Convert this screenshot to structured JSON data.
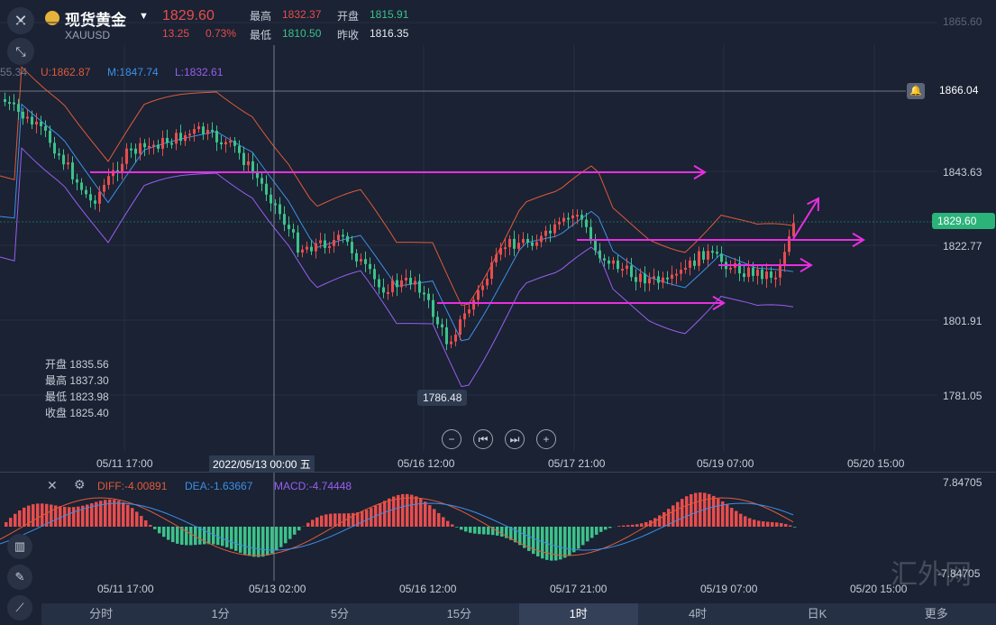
{
  "header": {
    "name": "现货黄金",
    "symbol": "XAUUSD",
    "price": "1829.60",
    "change": "13.25",
    "change_pct": "0.73%",
    "high_label": "最高",
    "high": "1832.37",
    "open_label": "开盘",
    "open": "1815.91",
    "low_label": "最低",
    "low": "1810.50",
    "prev_label": "昨收",
    "prev": "1816.35"
  },
  "boll": {
    "left_value": "55.34",
    "u": "U:1862.87",
    "m": "M:1847.74",
    "l": "L:1832.61"
  },
  "price_axis": [
    "1865.60",
    "1843.63",
    "1822.77",
    "1801.91",
    "1781.05"
  ],
  "alert_price": "1866.04",
  "current_price_tag": "1829.60",
  "low_marker": "1786.48",
  "ohlc_box": {
    "open": "开盘 1835.56",
    "high": "最高 1837.30",
    "low": "最低 1823.98",
    "close": "收盘 1825.40"
  },
  "time_axis": [
    "05/11 17:00",
    "05/16 12:00",
    "05/17 21:00",
    "05/19 07:00",
    "05/20 15:00"
  ],
  "crosshair_time": "2022/05/13 00:00 五",
  "macd": {
    "diff": "DIFF:-4.00891",
    "dea": "DEA:-1.63667",
    "macd": "MACD:-4.74448",
    "top": "7.84705",
    "bottom": "-7.84705"
  },
  "macd_time_axis": [
    "05/11 17:00",
    "05/13 02:00",
    "05/16 12:00",
    "05/17 21:00",
    "05/19 07:00",
    "05/20 15:00"
  ],
  "tabs": [
    "分时",
    "1分",
    "5分",
    "15分",
    "1时",
    "4时",
    "日K",
    "更多"
  ],
  "active_tab": "1时",
  "watermark": "汇外网",
  "colors": {
    "up": "#e84d4d",
    "down": "#3cc28a",
    "upper_band": "#e05a3a",
    "mid_band": "#3d8fe8",
    "lower_band": "#9a5ef0",
    "arrow": "#e82fe0"
  }
}
